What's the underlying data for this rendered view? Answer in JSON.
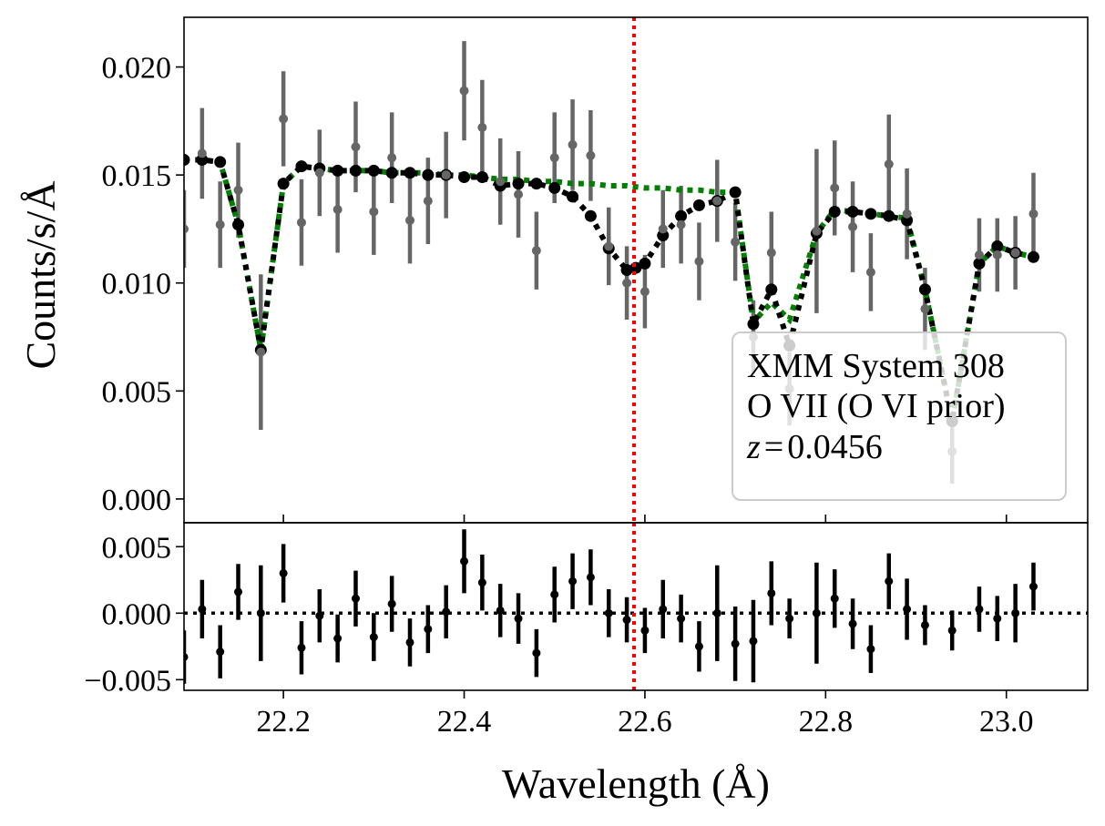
{
  "chart_data": {
    "type": "scatter",
    "xlabel": "Wavelength (Å)",
    "ylabel": "Counts/s/Å",
    "xlim": [
      22.09,
      23.09
    ],
    "top_panel": {
      "ylim": [
        -0.0011,
        0.0223
      ],
      "yticks": [
        0.0,
        0.005,
        0.01,
        0.015,
        0.02
      ],
      "ytick_labels": [
        "0.000",
        "0.005",
        "0.010",
        "0.015",
        "0.020"
      ],
      "line_marker": {
        "x": 22.588,
        "color": "#ff0000",
        "label": ""
      },
      "data": {
        "name": "data",
        "color": "#666666",
        "x": [
          22.09,
          22.11,
          22.13,
          22.15,
          22.175,
          22.2,
          22.22,
          22.24,
          22.26,
          22.28,
          22.3,
          22.32,
          22.34,
          22.36,
          22.38,
          22.4,
          22.42,
          22.44,
          22.46,
          22.48,
          22.5,
          22.52,
          22.54,
          22.56,
          22.58,
          22.6,
          22.62,
          22.64,
          22.66,
          22.68,
          22.7,
          22.72,
          22.74,
          22.76,
          22.79,
          22.81,
          22.83,
          22.85,
          22.87,
          22.89,
          22.91,
          22.94,
          22.97,
          22.99,
          23.01,
          23.03
        ],
        "y": [
          0.0125,
          0.016,
          0.0127,
          0.0143,
          0.0068,
          0.0176,
          0.0128,
          0.0151,
          0.0134,
          0.0163,
          0.0133,
          0.0158,
          0.0129,
          0.0138,
          0.015,
          0.0189,
          0.0172,
          0.0147,
          0.0141,
          0.0115,
          0.0158,
          0.0164,
          0.0159,
          0.0117,
          0.01,
          0.0096,
          0.0125,
          0.0127,
          0.011,
          0.0138,
          0.0119,
          0.0075,
          0.0114,
          0.0051,
          0.0124,
          0.0144,
          0.0126,
          0.0105,
          0.0155,
          0.0132,
          0.0088,
          0.0022,
          0.0113,
          0.0113,
          0.0114,
          0.0132
        ],
        "err": [
          0.0018,
          0.0021,
          0.002,
          0.0022,
          0.0036,
          0.0022,
          0.002,
          0.002,
          0.002,
          0.0021,
          0.002,
          0.0021,
          0.002,
          0.002,
          0.002,
          0.0023,
          0.0022,
          0.002,
          0.002,
          0.0018,
          0.0021,
          0.0021,
          0.0021,
          0.0018,
          0.0017,
          0.0017,
          0.0018,
          0.0018,
          0.0018,
          0.0019,
          0.0018,
          0.0017,
          0.0019,
          0.0017,
          0.0038,
          0.0022,
          0.0021,
          0.0018,
          0.0023,
          0.0021,
          0.0019,
          0.0015,
          0.0017,
          0.0017,
          0.0017,
          0.0019
        ]
      },
      "prior_model": {
        "name": "O VI prior model",
        "color": "#008000",
        "x": [
          22.09,
          22.11,
          22.13,
          22.15,
          22.175,
          22.2,
          22.22,
          22.24,
          22.26,
          22.28,
          22.3,
          22.32,
          22.34,
          22.36,
          22.38,
          22.4,
          22.42,
          22.44,
          22.46,
          22.48,
          22.5,
          22.52,
          22.54,
          22.56,
          22.58,
          22.6,
          22.62,
          22.64,
          22.66,
          22.68,
          22.7,
          22.72,
          22.74,
          22.76,
          22.79,
          22.81,
          22.83,
          22.85,
          22.87,
          22.89,
          22.91,
          22.94,
          22.97,
          22.99,
          23.01,
          23.03
        ],
        "y": [
          0.0157,
          0.0157,
          0.0156,
          0.0127,
          0.0069,
          0.0146,
          0.0154,
          0.0153,
          0.0152,
          0.0152,
          0.0152,
          0.0151,
          0.0151,
          0.0151,
          0.015,
          0.015,
          0.0149,
          0.0148,
          0.0148,
          0.0147,
          0.0147,
          0.0146,
          0.0146,
          0.0145,
          0.0145,
          0.0144,
          0.0144,
          0.0143,
          0.0143,
          0.0142,
          0.0142,
          0.0082,
          0.0091,
          0.0083,
          0.0123,
          0.0134,
          0.0133,
          0.0132,
          0.0131,
          0.013,
          0.0097,
          0.0036,
          0.0109,
          0.0117,
          0.0114,
          0.0112
        ]
      },
      "model": {
        "name": "model",
        "color": "#000000",
        "x": [
          22.09,
          22.11,
          22.13,
          22.15,
          22.175,
          22.2,
          22.22,
          22.24,
          22.26,
          22.28,
          22.3,
          22.32,
          22.34,
          22.36,
          22.38,
          22.4,
          22.42,
          22.44,
          22.46,
          22.48,
          22.5,
          22.52,
          22.54,
          22.56,
          22.58,
          22.59,
          22.6,
          22.62,
          22.64,
          22.66,
          22.68,
          22.7,
          22.72,
          22.74,
          22.76,
          22.79,
          22.81,
          22.83,
          22.85,
          22.87,
          22.89,
          22.91,
          22.94,
          22.97,
          22.99,
          23.01,
          23.03
        ],
        "y": [
          0.0157,
          0.0157,
          0.0156,
          0.0127,
          0.0069,
          0.0146,
          0.0154,
          0.0153,
          0.0152,
          0.0152,
          0.0152,
          0.0151,
          0.0151,
          0.015,
          0.015,
          0.0149,
          0.0149,
          0.0145,
          0.0146,
          0.0146,
          0.0144,
          0.014,
          0.0131,
          0.0116,
          0.0106,
          0.0107,
          0.0109,
          0.0122,
          0.0131,
          0.0136,
          0.0138,
          0.0142,
          0.0081,
          0.0097,
          0.0071,
          0.0123,
          0.0133,
          0.0133,
          0.0132,
          0.0131,
          0.0129,
          0.0097,
          0.0036,
          0.0109,
          0.0117,
          0.0114,
          0.0112
        ]
      },
      "legend": {
        "placement": "lower-right",
        "lines": [
          "XMM System 308",
          "O VII (O VI prior)"
        ],
        "z_label": "z",
        "z_value": "0.0456"
      }
    },
    "residual_panel": {
      "ylim": [
        -0.0058,
        0.0068
      ],
      "yticks": [
        -0.005,
        0.0,
        0.005
      ],
      "ytick_labels": [
        "−0.005",
        "0.000",
        "0.005"
      ],
      "zero_line": 0.0,
      "x": [
        22.09,
        22.11,
        22.13,
        22.15,
        22.175,
        22.2,
        22.22,
        22.24,
        22.26,
        22.28,
        22.3,
        22.32,
        22.34,
        22.36,
        22.38,
        22.4,
        22.42,
        22.44,
        22.46,
        22.48,
        22.5,
        22.52,
        22.54,
        22.56,
        22.58,
        22.6,
        22.62,
        22.64,
        22.66,
        22.68,
        22.7,
        22.72,
        22.74,
        22.76,
        22.79,
        22.81,
        22.83,
        22.85,
        22.87,
        22.89,
        22.91,
        22.94,
        22.97,
        22.99,
        23.01,
        23.03
      ],
      "y": [
        -0.0033,
        0.0003,
        -0.0029,
        0.0016,
        0.0,
        0.003,
        -0.0026,
        -0.0002,
        -0.0019,
        0.0011,
        -0.0018,
        0.0007,
        -0.0022,
        -0.0012,
        0.0001,
        0.0039,
        0.0023,
        0.0002,
        -0.0004,
        -0.003,
        0.0014,
        0.0024,
        0.0027,
        0.0,
        -0.0005,
        -0.0013,
        0.0003,
        -0.0004,
        -0.0025,
        0.0,
        -0.0023,
        -0.0021,
        0.0015,
        -0.0004,
        0.0,
        0.0011,
        -0.0008,
        -0.0027,
        0.0024,
        0.0003,
        -0.0009,
        -0.0013,
        0.0003,
        -0.0004,
        0.0,
        0.002
      ],
      "err": [
        0.002,
        0.0022,
        0.002,
        0.0021,
        0.0036,
        0.0022,
        0.002,
        0.002,
        0.0018,
        0.0021,
        0.0018,
        0.0021,
        0.0018,
        0.0018,
        0.002,
        0.0024,
        0.0021,
        0.002,
        0.0019,
        0.0018,
        0.0021,
        0.0021,
        0.0021,
        0.0018,
        0.0017,
        0.0017,
        0.0022,
        0.0018,
        0.0019,
        0.0036,
        0.0028,
        0.0031,
        0.0024,
        0.0015,
        0.0038,
        0.0022,
        0.0019,
        0.0018,
        0.0021,
        0.0023,
        0.0015,
        0.0015,
        0.0017,
        0.0017,
        0.0022,
        0.0018
      ]
    },
    "xticks": [
      22.2,
      22.4,
      22.6,
      22.8,
      23.0
    ],
    "xtick_labels": [
      "22.2",
      "22.4",
      "22.6",
      "22.8",
      "23.0"
    ]
  }
}
